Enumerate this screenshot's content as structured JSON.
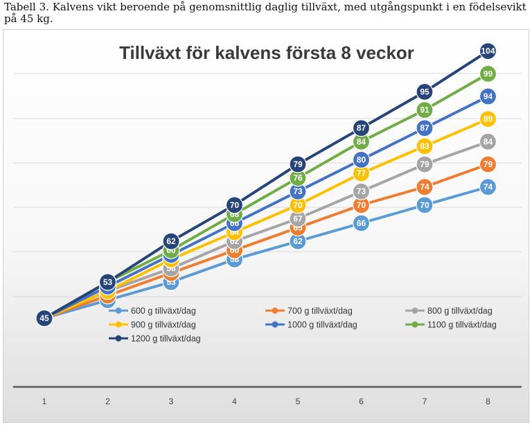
{
  "caption": "Tabell 3. Kalvens vikt beroende på genomsnittlig daglig tillväxt, med utgångspunkt i en födelsevikt på 45 kg.",
  "chart_data": {
    "type": "line",
    "title": "Tillväxt för kalvens första 8 veckor",
    "xlabel": "",
    "ylabel": "",
    "x": [
      1,
      2,
      3,
      4,
      5,
      6,
      7,
      8
    ],
    "ylim": [
      35,
      110
    ],
    "grid": true,
    "legend_position": "bottom-inside",
    "series": [
      {
        "name": "600 g tillväxt/dag",
        "color": "#5B9BD5",
        "values": [
          45,
          49,
          53,
          58,
          62,
          66,
          70,
          74
        ]
      },
      {
        "name": "700 g tillväxt/dag",
        "color": "#ED7D31",
        "values": [
          45,
          50,
          55,
          60,
          65,
          70,
          74,
          79
        ]
      },
      {
        "name": "800 g tillväxt/dag",
        "color": "#A5A5A5",
        "values": [
          45,
          51,
          56,
          62,
          67,
          73,
          79,
          84
        ]
      },
      {
        "name": "900 g tillväxt/dag",
        "color": "#FFC000",
        "values": [
          45,
          51,
          58,
          64,
          70,
          77,
          83,
          89
        ]
      },
      {
        "name": "1000 g tillväxt/dag",
        "color": "#4472C4",
        "values": [
          45,
          52,
          59,
          66,
          73,
          80,
          87,
          94
        ]
      },
      {
        "name": "1100 g tillväxt/dag",
        "color": "#70AD47",
        "values": [
          45,
          53,
          60,
          68,
          76,
          84,
          91,
          99
        ]
      },
      {
        "name": "1200 g tillväxt/dag",
        "color": "#264478",
        "values": [
          45,
          53,
          62,
          70,
          79,
          87,
          95,
          104
        ]
      }
    ]
  }
}
